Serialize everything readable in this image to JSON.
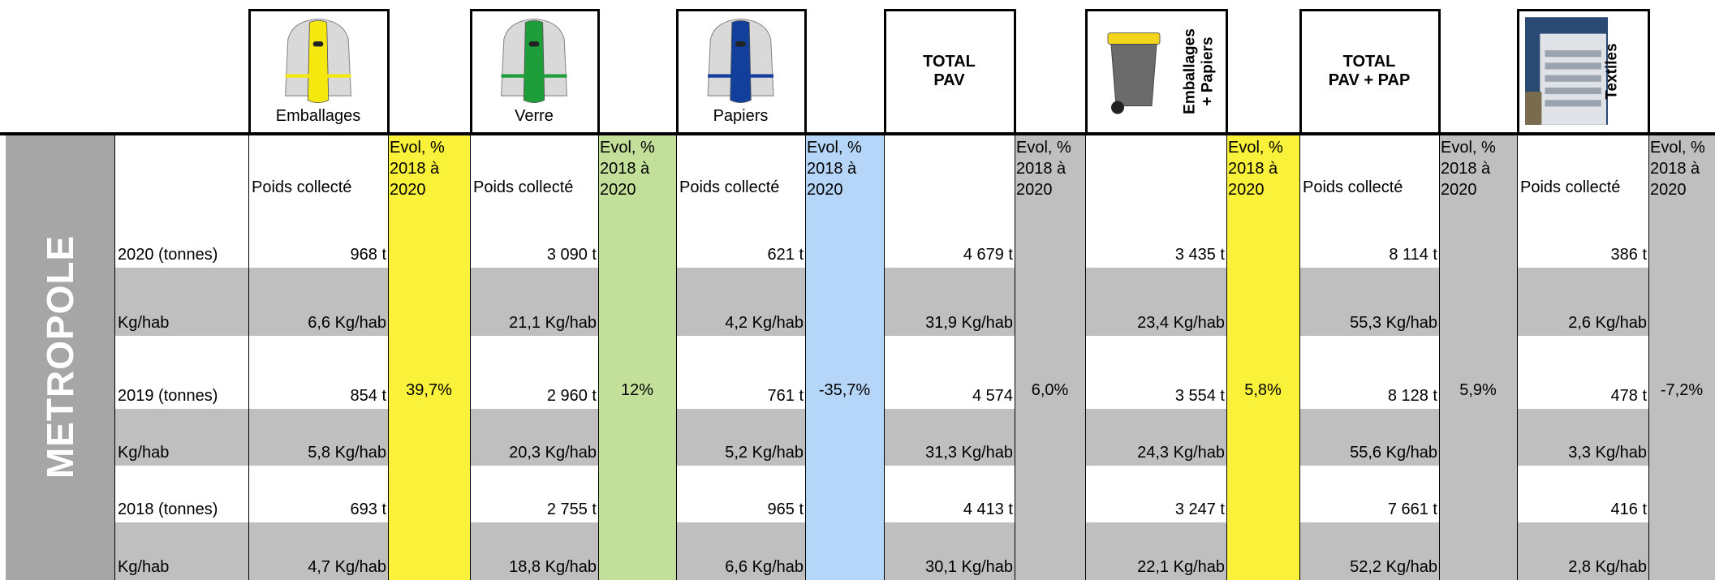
{
  "region": "METROPOLE",
  "row_labels": [
    "2020 (tonnes)",
    "Kg/hab",
    "2019 (tonnes)",
    "Kg/hab",
    "2018 (tonnes)",
    "Kg/hab"
  ],
  "groups": [
    {
      "header": "Emballages",
      "weight_label": "Poids collecté",
      "evol_label": "Evol, %\n2018 à\n2020",
      "evol_color": "#f9f13a",
      "values": [
        "968 t",
        "6,6 Kg/hab",
        "854 t",
        "5,8 Kg/hab",
        "693 t",
        "4,7 Kg/hab"
      ],
      "evol": "39,7%"
    },
    {
      "header": "Verre",
      "weight_label": "Poids collecté",
      "evol_label": "Evol, %\n2018 à\n2020",
      "evol_color": "#c3e09a",
      "values": [
        "3 090 t",
        "21,1 Kg/hab",
        "2 960 t",
        "20,3 Kg/hab",
        "2 755 t",
        "18,8 Kg/hab"
      ],
      "evol": "12%"
    },
    {
      "header": "Papiers",
      "weight_label": "Poids collecté",
      "evol_label": "Evol, %\n2018 à\n2020",
      "evol_color": "#b5d6f9",
      "values": [
        "621 t",
        "4,2 Kg/hab",
        "761 t",
        "5,2 Kg/hab",
        "965 t",
        "6,6 Kg/hab"
      ],
      "evol": "-35,7%"
    },
    {
      "header": "TOTAL\nPAV",
      "evol_label": "Evol, %\n2018 à\n2020",
      "evol_color": "#bfbfbf",
      "values": [
        "4 679 t",
        "31,9 Kg/hab",
        "4 574",
        "31,3 Kg/hab",
        "4 413 t",
        "30,1 Kg/hab"
      ],
      "evol": "6,0%"
    },
    {
      "header": "Emballages\n+ Papiers",
      "evol_label": "Evol, %\n2018 à\n2020",
      "evol_color": "#f9f13a",
      "values": [
        "3 435 t",
        "23,4 Kg/hab",
        "3 554 t",
        "24,3 Kg/hab",
        "3 247 t",
        "22,1 Kg/hab"
      ],
      "evol": "5,8%"
    },
    {
      "header": "TOTAL\nPAV + PAP",
      "weight_label": "Poids collecté",
      "evol_label": "Evol, %\n2018 à\n2020",
      "evol_color": "#bfbfbf",
      "values": [
        "8 114 t",
        "55,3 Kg/hab",
        "8 128 t",
        "55,6 Kg/hab",
        "7 661 t",
        "52,2 Kg/hab"
      ],
      "evol": "5,9%"
    },
    {
      "header": "Textiles",
      "weight_label": "Poids collecté",
      "evol_label": "Evol, %\n2018 à\n2020",
      "evol_color": "#bfbfbf",
      "values": [
        "386 t",
        "2,6 Kg/hab",
        "478 t",
        "3,3 Kg/hab",
        "416 t",
        "2,8 Kg/hab"
      ],
      "evol": "-7,2%"
    }
  ]
}
